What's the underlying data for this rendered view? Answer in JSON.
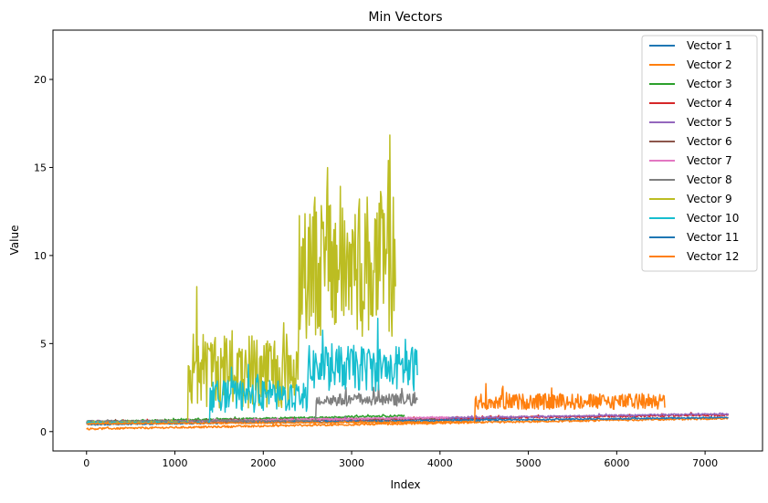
{
  "chart_data": {
    "type": "line",
    "title": "Min Vectors",
    "xlabel": "Index",
    "ylabel": "Value",
    "xlim": [
      -380,
      7650
    ],
    "ylim": [
      -1.1,
      22.8
    ],
    "xticks": [
      0,
      1000,
      2000,
      3000,
      4000,
      5000,
      6000,
      7000
    ],
    "yticks": [
      0,
      5,
      10,
      15,
      20
    ],
    "grid": false,
    "legend_position": "top-right",
    "series": [
      {
        "name": "Vector 1",
        "color": "#1f77b4",
        "x_end": 4800,
        "base_start": 0.45,
        "base_end": 0.75,
        "noise": 0.04
      },
      {
        "name": "Vector 2",
        "color": "#ff7f0e",
        "x_end": 7270,
        "base_start": 0.15,
        "base_end": 0.75,
        "noise": 0.05
      },
      {
        "name": "Vector 3",
        "color": "#2ca02c",
        "x_end": 3600,
        "base_start": 0.55,
        "base_end": 0.9,
        "noise": 0.05
      },
      {
        "name": "Vector 4",
        "color": "#d62728",
        "x_end": 7270,
        "base_start": 0.5,
        "base_end": 0.95,
        "noise": 0.06
      },
      {
        "name": "Vector 5",
        "color": "#9467bd",
        "x_end": 7270,
        "base_start": 0.5,
        "base_end": 1.0,
        "noise": 0.05
      },
      {
        "name": "Vector 6",
        "color": "#8c564b",
        "x_end": 4000,
        "base_start": 0.55,
        "base_end": 0.75,
        "noise": 0.05
      },
      {
        "name": "Vector 7",
        "color": "#e377c2",
        "x_end": 4100,
        "base_start": 0.5,
        "base_end": 0.8,
        "noise": 0.06
      },
      {
        "name": "Vector 8",
        "color": "#7f7f7f",
        "x_end": 3750,
        "base_start": 0.55,
        "base_end": 2.1,
        "noise": 0.4
      },
      {
        "name": "Vector 9",
        "color": "#bcbd22",
        "x_end": 3500,
        "base_start": 0.5,
        "base_end": 9.0,
        "noise": 3.0
      },
      {
        "name": "Vector 10",
        "color": "#17becf",
        "x_end": 3750,
        "base_start": 0.5,
        "base_end": 4.0,
        "noise": 1.2
      },
      {
        "name": "Vector 11",
        "color": "#1f77b4",
        "x_end": 7270,
        "base_start": 0.4,
        "base_end": 0.8,
        "noise": 0.04
      },
      {
        "name": "Vector 12",
        "color": "#ff7f0e",
        "x_end": 6550,
        "base_start": 0.45,
        "base_end": 1.7,
        "noise": 0.45
      }
    ]
  }
}
